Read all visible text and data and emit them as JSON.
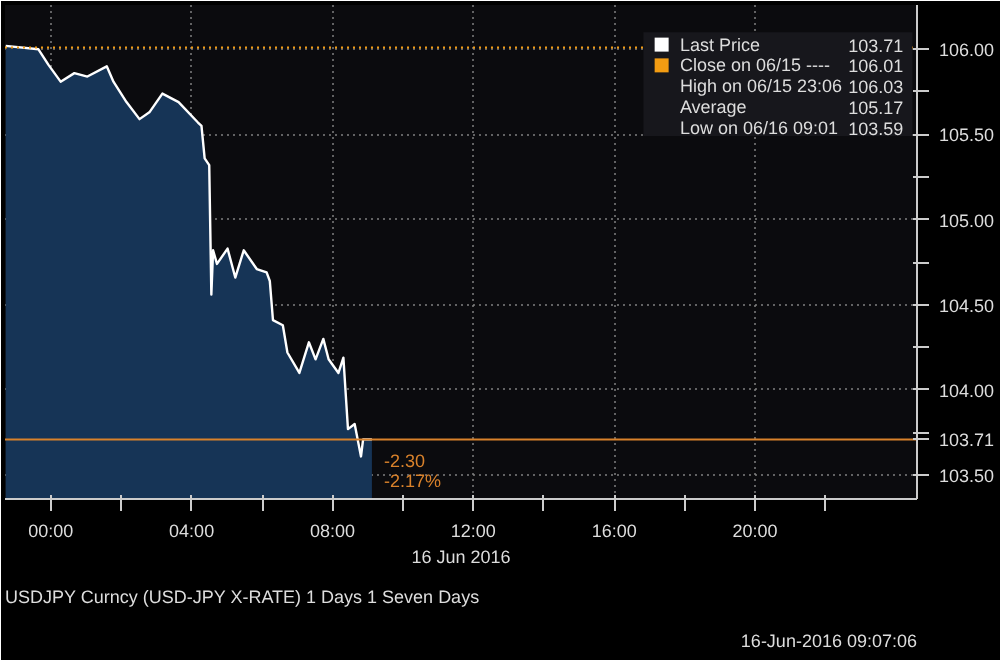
{
  "chart_data": {
    "type": "area",
    "title": "USDJPY Curncy (USD-JPY X-RATE) 1 Days 1 Seven Days",
    "xlabel": "16 Jun 2016",
    "x": [
      -1.28,
      -0.35,
      -0.07,
      0.28,
      0.67,
      1.04,
      1.59,
      1.78,
      2.15,
      2.52,
      2.8,
      3.17,
      3.63,
      4.18,
      4.28,
      4.37,
      4.5,
      4.56,
      4.61,
      4.72,
      5.02,
      5.24,
      5.48,
      5.85,
      6.13,
      6.22,
      6.31,
      6.59,
      6.72,
      7.06,
      7.33,
      7.52,
      7.74,
      7.89,
      8.17,
      8.31,
      8.44,
      8.63,
      8.81,
      8.87,
      9.12
    ],
    "series": [
      {
        "name": "Last Price",
        "color": "#ffffff",
        "values": [
          106.02,
          106.0,
          105.91,
          105.81,
          105.86,
          105.84,
          105.9,
          105.81,
          105.69,
          105.59,
          105.63,
          105.74,
          105.69,
          105.57,
          105.55,
          105.36,
          105.32,
          104.56,
          104.82,
          104.74,
          104.83,
          104.66,
          104.82,
          104.71,
          104.69,
          104.64,
          104.41,
          104.38,
          104.22,
          104.1,
          104.28,
          104.18,
          104.3,
          104.18,
          104.1,
          104.19,
          103.77,
          103.8,
          103.61,
          103.71,
          103.71
        ]
      }
    ],
    "xlim": [
      -1.3,
      24.6
    ],
    "ylim": [
      103.36,
      106.26
    ],
    "xticks": [
      {
        "value": 0,
        "label": "00:00"
      },
      {
        "value": 2,
        "label": null
      },
      {
        "value": 4,
        "label": "04:00"
      },
      {
        "value": 6,
        "label": null
      },
      {
        "value": 8,
        "label": "08:00"
      },
      {
        "value": 10,
        "label": null
      },
      {
        "value": 12,
        "label": "12:00"
      },
      {
        "value": 14,
        "label": null
      },
      {
        "value": 16,
        "label": "16:00"
      },
      {
        "value": 18,
        "label": null
      },
      {
        "value": 20,
        "label": "20:00"
      },
      {
        "value": 22,
        "label": null
      }
    ],
    "yticks": [
      {
        "value": 103.5,
        "label": "103.50"
      },
      {
        "value": 103.75,
        "label": null
      },
      {
        "value": 104,
        "label": "104.00"
      },
      {
        "value": 104.25,
        "label": null
      },
      {
        "value": 104.5,
        "label": "104.50"
      },
      {
        "value": 104.75,
        "label": null
      },
      {
        "value": 105,
        "label": "105.00"
      },
      {
        "value": 105.25,
        "label": null
      },
      {
        "value": 105.5,
        "label": "105.50"
      },
      {
        "value": 105.75,
        "label": null
      },
      {
        "value": 106,
        "label": "106.00"
      }
    ],
    "ref_lines": [
      {
        "axis": "y",
        "value": 106.01,
        "label": "Close on 06/15 ---- 106.01",
        "color": "#f39c12",
        "line_style": "dotted"
      },
      {
        "axis": "y",
        "value": 103.71,
        "label": "103.71",
        "color": "#d9822b",
        "line_style": "solid"
      }
    ],
    "annotations": [
      "103.71",
      "High on 06/15 23:06 106.03",
      "Average 105.17",
      "Low on 06/16 09:01 103.59",
      {
        "text": "-2.30",
        "x": 9.12,
        "y": 103.71
      },
      {
        "text": "-2.17%",
        "x": 9.12,
        "y": 103.71
      },
      "16-Jun-2016 09:07:06"
    ],
    "grid": true,
    "legend": "top right"
  }
}
